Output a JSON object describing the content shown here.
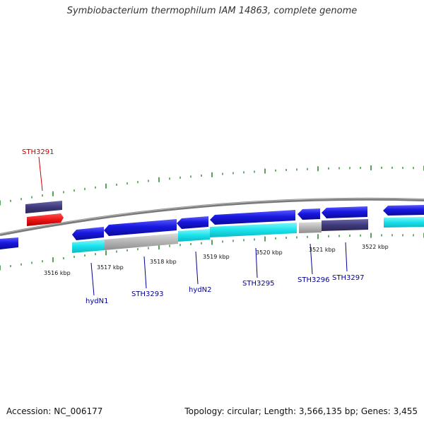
{
  "title": "Symbiobacterium thermophilum IAM 14863, complete genome",
  "footer": {
    "accession": "Accession: NC_006177",
    "summary": "Topology: circular; Length: 3,566,135 bp; Genes: 3,455"
  },
  "kbp_labels": [
    "3516 kbp",
    "3517 kbp",
    "3518 kbp",
    "3519 kbp",
    "3520 kbp",
    "3521 kbp",
    "3522 kbp"
  ],
  "genes": [
    {
      "name": "STH3291",
      "color": "#cc0000"
    },
    {
      "name": "hydN1",
      "color": "#000099"
    },
    {
      "name": "STH3293",
      "color": "#000099"
    },
    {
      "name": "hydN2",
      "color": "#000099"
    },
    {
      "name": "STH3295",
      "color": "#000099"
    },
    {
      "name": "STH3296",
      "color": "#000099"
    },
    {
      "name": "STH3297",
      "color": "#000099"
    }
  ],
  "colors": {
    "backbone": "#808080",
    "cds": "#1c1ccc",
    "cds_top": "#4848ff",
    "rna": "#e51e1e",
    "feature_dark": "#3e3a7a",
    "feature_cyan": "#1ae4ee",
    "feature_gray": "#b4b4b4",
    "tick": "#2f8a2f"
  }
}
